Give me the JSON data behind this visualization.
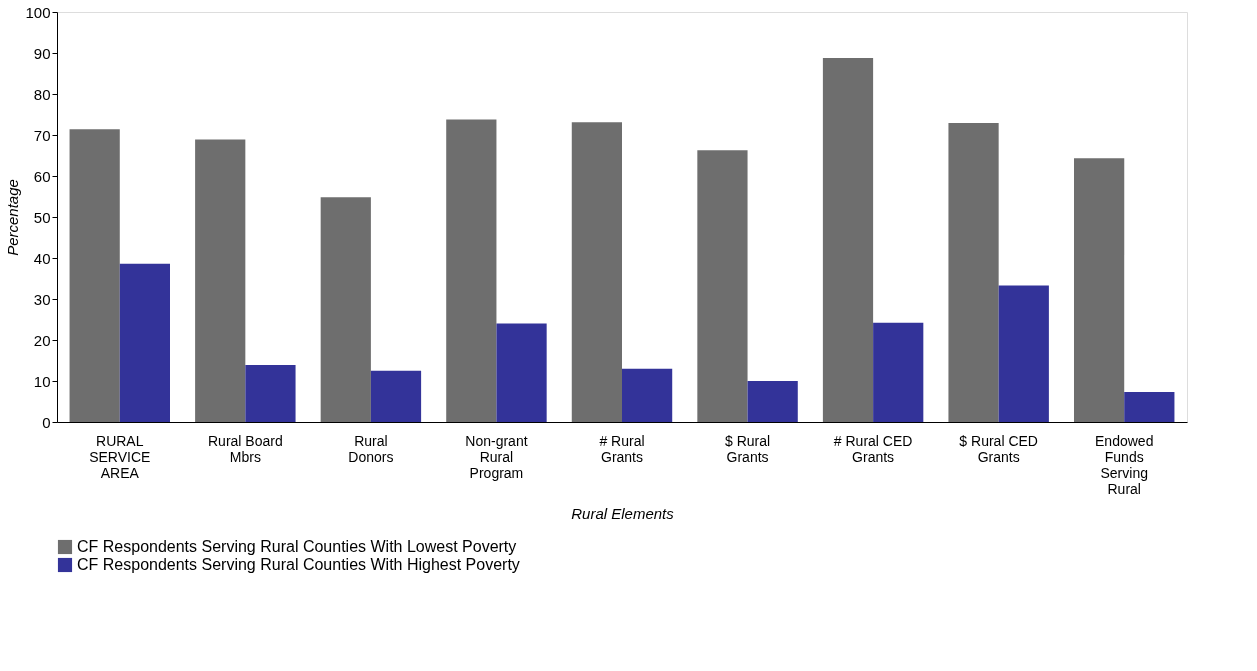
{
  "chart_data": {
    "type": "bar",
    "xlabel": "Rural Elements",
    "ylabel": "Percentage",
    "categories": [
      "RURAL SERVICE AREA",
      "Rural Board Mbrs",
      "Rural Donors",
      "Non-grant Rural Program",
      "# Rural Grants",
      "$ Rural Grants",
      "# Rural CED Grants",
      "$ Rural CED Grants",
      "Endowed Funds Serving Rural"
    ],
    "series": [
      {
        "name": "CF Respondents Serving Rural Counties With Lowest Poverty",
        "color": "#6e6e6e",
        "values": [
          71.4,
          68.9,
          54.8,
          73.8,
          73.1,
          66.3,
          88.8,
          72.9,
          64.3
        ]
      },
      {
        "name": "CF Respondents Serving Rural Counties With Highest Poverty",
        "color": "#333399",
        "values": [
          38.6,
          13.9,
          12.5,
          24.0,
          13.0,
          10.0,
          24.2,
          33.3,
          7.3
        ]
      }
    ],
    "ylim": [
      0,
      100
    ],
    "yticks": [
      0,
      10,
      20,
      30,
      40,
      50,
      60,
      70,
      80,
      90,
      100
    ],
    "grid": false,
    "legend": "bottom"
  }
}
